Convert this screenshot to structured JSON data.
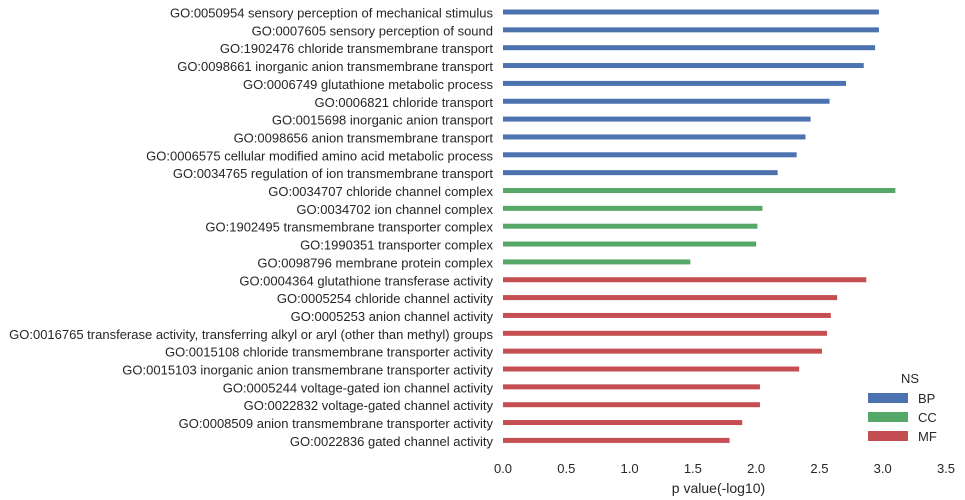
{
  "chart_data": {
    "type": "bar",
    "orientation": "horizontal",
    "xlabel": "p value(-log10)",
    "ylabel": "",
    "xlim": [
      0,
      3.5
    ],
    "xticks": [
      "0.0",
      "0.5",
      "1.0",
      "1.5",
      "2.0",
      "2.5",
      "3.0",
      "3.5"
    ],
    "grid": false,
    "legend": {
      "title": "NS",
      "placement": "bottom-right",
      "entries": [
        {
          "name": "BP",
          "color": "#4c72b0"
        },
        {
          "name": "CC",
          "color": "#55a868"
        },
        {
          "name": "MF",
          "color": "#c44e52"
        }
      ]
    },
    "bars": [
      {
        "label": "GO:0050954 sensory perception of mechanical stimulus",
        "value": 2.97,
        "ns": "BP"
      },
      {
        "label": "GO:0007605 sensory perception of sound",
        "value": 2.97,
        "ns": "BP"
      },
      {
        "label": "GO:1902476 chloride transmembrane transport",
        "value": 2.94,
        "ns": "BP"
      },
      {
        "label": "GO:0098661 inorganic anion transmembrane transport",
        "value": 2.85,
        "ns": "BP"
      },
      {
        "label": "GO:0006749 glutathione metabolic process",
        "value": 2.71,
        "ns": "BP"
      },
      {
        "label": "GO:0006821 chloride transport",
        "value": 2.58,
        "ns": "BP"
      },
      {
        "label": "GO:0015698 inorganic anion transport",
        "value": 2.43,
        "ns": "BP"
      },
      {
        "label": "GO:0098656 anion transmembrane transport",
        "value": 2.39,
        "ns": "BP"
      },
      {
        "label": "GO:0006575 cellular modified amino acid metabolic process",
        "value": 2.32,
        "ns": "BP"
      },
      {
        "label": "GO:0034765 regulation of ion transmembrane transport",
        "value": 2.17,
        "ns": "BP"
      },
      {
        "label": "GO:0034707 chloride channel complex",
        "value": 3.1,
        "ns": "CC"
      },
      {
        "label": "GO:0034702 ion channel complex",
        "value": 2.05,
        "ns": "CC"
      },
      {
        "label": "GO:1902495 transmembrane transporter complex",
        "value": 2.01,
        "ns": "CC"
      },
      {
        "label": "GO:1990351 transporter complex",
        "value": 2.0,
        "ns": "CC"
      },
      {
        "label": "GO:0098796 membrane protein complex",
        "value": 1.48,
        "ns": "CC"
      },
      {
        "label": "GO:0004364 glutathione transferase activity",
        "value": 2.87,
        "ns": "MF"
      },
      {
        "label": "GO:0005254 chloride channel activity",
        "value": 2.64,
        "ns": "MF"
      },
      {
        "label": "GO:0005253 anion channel activity",
        "value": 2.59,
        "ns": "MF"
      },
      {
        "label": "GO:0016765 transferase activity, transferring alkyl or aryl (other than methyl) groups",
        "value": 2.56,
        "ns": "MF"
      },
      {
        "label": "GO:0015108 chloride transmembrane transporter activity",
        "value": 2.52,
        "ns": "MF"
      },
      {
        "label": "GO:0015103 inorganic anion transmembrane transporter activity",
        "value": 2.34,
        "ns": "MF"
      },
      {
        "label": "GO:0005244 voltage-gated ion channel activity",
        "value": 2.03,
        "ns": "MF"
      },
      {
        "label": "GO:0022832 voltage-gated channel activity",
        "value": 2.03,
        "ns": "MF"
      },
      {
        "label": "GO:0008509 anion transmembrane transporter activity",
        "value": 1.89,
        "ns": "MF"
      },
      {
        "label": "GO:0022836 gated channel activity",
        "value": 1.79,
        "ns": "MF"
      }
    ]
  }
}
